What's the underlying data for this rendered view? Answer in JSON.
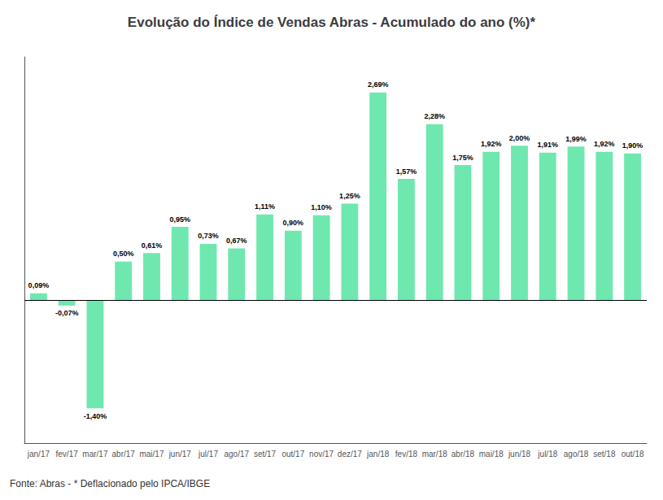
{
  "chart_data": {
    "type": "bar",
    "title": "Evolução do Índice de Vendas Abras - Acumulado do ano (%)*",
    "annotations": [
      "Fonte: Abras - * Deflacionado pelo IPCA/IBGE"
    ],
    "categories": [
      "jan/17",
      "fev/17",
      "mar/17",
      "abr/17",
      "mai/17",
      "jun/17",
      "jul/17",
      "ago/17",
      "set/17",
      "out/17",
      "nov/17",
      "dez/17",
      "jan/18",
      "fev/18",
      "mar/18",
      "abr/18",
      "mai/18",
      "jun/18",
      "jul/18",
      "ago/18",
      "set/18",
      "out/18"
    ],
    "values": [
      0.09,
      -0.07,
      -1.4,
      0.5,
      0.61,
      0.95,
      0.73,
      0.67,
      1.11,
      0.9,
      1.1,
      1.25,
      2.69,
      1.57,
      2.28,
      1.75,
      1.92,
      2.0,
      1.91,
      1.99,
      1.92,
      1.9
    ],
    "value_labels": [
      "0,09%",
      "-0,07%",
      "-1,40%",
      "0,50%",
      "0,61%",
      "0,95%",
      "0,73%",
      "0,67%",
      "1,11%",
      "0,90%",
      "1,10%",
      "1,25%",
      "2,69%",
      "1,57%",
      "2,28%",
      "1,75%",
      "1,92%",
      "2,00%",
      "1,91%",
      "1,99%",
      "1,92%",
      "1,90%"
    ],
    "color": "#6fe8b0",
    "ylim": [
      -1.85,
      3.15
    ],
    "grid": false,
    "data_labels": true,
    "tick_labels": "x"
  }
}
